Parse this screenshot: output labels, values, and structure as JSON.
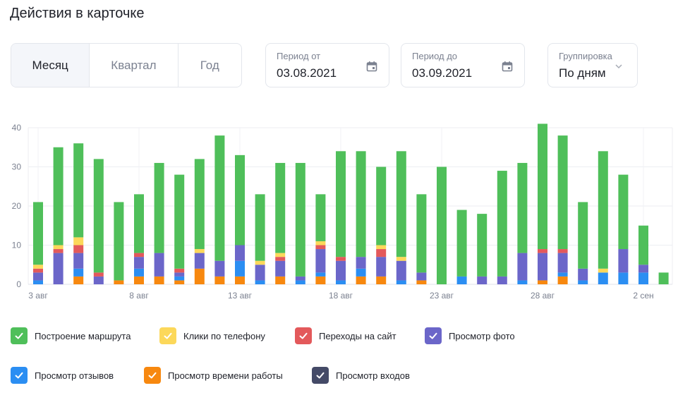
{
  "page": {
    "title": "Действия в карточке"
  },
  "period_tabs": [
    {
      "label": "Месяц",
      "active": true
    },
    {
      "label": "Квартал",
      "active": false
    },
    {
      "label": "Год",
      "active": false
    }
  ],
  "period_from": {
    "label": "Период от",
    "value": "03.08.2021",
    "icon": "calendar-icon"
  },
  "period_to": {
    "label": "Период до",
    "value": "03.09.2021",
    "icon": "calendar-icon"
  },
  "grouping": {
    "label": "Группировка",
    "value": "По дням",
    "icon": "chevron-down-icon"
  },
  "legend": [
    {
      "label": "Построение маршрута",
      "color": "#4fbf5a"
    },
    {
      "label": "Клики по телефону",
      "color": "#fcd85a"
    },
    {
      "label": "Переходы на сайт",
      "color": "#e3595b"
    },
    {
      "label": "Просмотр фото",
      "color": "#6b66c9"
    },
    {
      "label": "Просмотр отзывов",
      "color": "#2b8ef2"
    },
    {
      "label": "Просмотр времени работы",
      "color": "#f7880f"
    },
    {
      "label": "Просмотр входов",
      "color": "#444a67"
    }
  ],
  "chart_data": {
    "type": "bar",
    "stacked": true,
    "ylim": [
      0,
      40
    ],
    "yticks": [
      "0",
      "10",
      "20",
      "30",
      "40"
    ],
    "grid": true,
    "x_tick_labels": [
      {
        "index": 0,
        "label": "3 авг"
      },
      {
        "index": 5,
        "label": "8 авг"
      },
      {
        "index": 10,
        "label": "13 авг"
      },
      {
        "index": 15,
        "label": "18 авг"
      },
      {
        "index": 20,
        "label": "23 авг"
      },
      {
        "index": 25,
        "label": "28 авг"
      },
      {
        "index": 30,
        "label": "2 сен"
      }
    ],
    "series": [
      {
        "name": "Просмотр времени работы",
        "color": "#f7880f",
        "values": [
          0,
          0,
          2,
          0,
          1,
          2,
          2,
          1,
          4,
          2,
          2,
          0,
          2,
          0,
          2,
          0,
          2,
          2,
          0,
          1,
          0,
          0,
          0,
          0,
          0,
          1,
          2,
          0,
          0,
          0,
          0,
          0
        ]
      },
      {
        "name": "Просмотр отзывов",
        "color": "#2b8ef2",
        "values": [
          1,
          0,
          2,
          0,
          0,
          2,
          0,
          1,
          0,
          0,
          4,
          1,
          0,
          1,
          1,
          1,
          2,
          0,
          1,
          0,
          0,
          2,
          0,
          0,
          1,
          0,
          1,
          1,
          3,
          3,
          3,
          0
        ]
      },
      {
        "name": "Просмотр фото",
        "color": "#6b66c9",
        "values": [
          2,
          8,
          4,
          2,
          0,
          3,
          6,
          1,
          4,
          4,
          4,
          4,
          4,
          1,
          6,
          5,
          3,
          5,
          5,
          2,
          0,
          0,
          2,
          2,
          7,
          7,
          5,
          3,
          0,
          6,
          2,
          0
        ]
      },
      {
        "name": "Переходы на сайт",
        "color": "#e3595b",
        "values": [
          1,
          1,
          2,
          1,
          0,
          1,
          0,
          1,
          0,
          0,
          0,
          0,
          1,
          0,
          1,
          1,
          0,
          2,
          0,
          0,
          0,
          0,
          0,
          0,
          0,
          1,
          1,
          0,
          0,
          0,
          0,
          0
        ]
      },
      {
        "name": "Клики по телефону",
        "color": "#fcd85a",
        "values": [
          1,
          1,
          2,
          0,
          0,
          0,
          0,
          0,
          1,
          0,
          0,
          1,
          1,
          0,
          1,
          0,
          0,
          1,
          1,
          0,
          0,
          0,
          0,
          0,
          0,
          0,
          0,
          0,
          1,
          0,
          0,
          0
        ]
      },
      {
        "name": "Построение маршрута",
        "color": "#4fbf5a",
        "values": [
          16,
          25,
          24,
          29,
          20,
          15,
          23,
          24,
          23,
          32,
          23,
          17,
          23,
          29,
          12,
          27,
          27,
          20,
          27,
          20,
          30,
          17,
          16,
          27,
          23,
          32,
          29,
          17,
          30,
          19,
          10,
          3
        ]
      }
    ]
  }
}
